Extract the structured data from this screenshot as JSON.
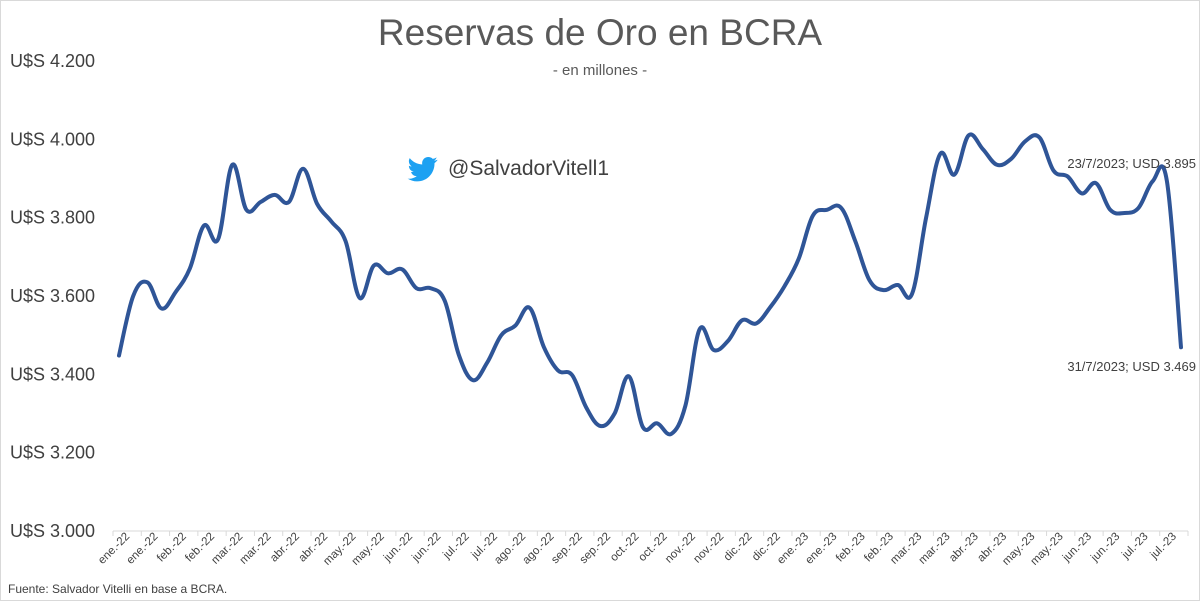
{
  "twitter_handle": "@SalvadorVitell1",
  "icons": {
    "twitter": "twitter-bird-icon"
  },
  "colors": {
    "line": "#2f5597",
    "twitter": "#1da1f2",
    "text": "#404040",
    "title": "#595959"
  },
  "source": "Fuente: Salvador Vitelli en base a BCRA.",
  "chart_data": {
    "type": "line",
    "title": "Reservas de Oro en BCRA",
    "subtitle": "- en millones -",
    "ylim": [
      3000,
      4200
    ],
    "yticks": [
      3000,
      3200,
      3400,
      3600,
      3800,
      4000,
      4200
    ],
    "ytick_labels": [
      "U$S 3.000",
      "U$S 3.200",
      "U$S 3.400",
      "U$S 3.600",
      "U$S 3.800",
      "U$S 4.000",
      "U$S 4.200"
    ],
    "xtick_labels": [
      "ene.-22",
      "ene.-22",
      "feb.-22",
      "feb.-22",
      "mar.-22",
      "mar.-22",
      "abr.-22",
      "abr.-22",
      "may.-22",
      "may.-22",
      "jun.-22",
      "jun.-22",
      "jul.-22",
      "jul.-22",
      "ago.-22",
      "ago.-22",
      "sep.-22",
      "sep.-22",
      "oct.-22",
      "oct.-22",
      "nov.-22",
      "nov.-22",
      "dic.-22",
      "dic.-22",
      "ene.-23",
      "ene.-23",
      "feb.-23",
      "feb.-23",
      "mar.-23",
      "mar.-23",
      "abr.-23",
      "abr.-23",
      "may.-23",
      "may.-23",
      "jun.-23",
      "jun.-23",
      "jul.-23",
      "jul.-23"
    ],
    "grid": false,
    "legend": "none",
    "series": [
      {
        "values": [
          3448,
          3600,
          3635,
          3568,
          3610,
          3670,
          3780,
          3745,
          3935,
          3820,
          3840,
          3858,
          3840,
          3925,
          3835,
          3790,
          3740,
          3595,
          3678,
          3658,
          3668,
          3620,
          3620,
          3588,
          3450,
          3385,
          3430,
          3500,
          3525,
          3570,
          3470,
          3410,
          3398,
          3315,
          3268,
          3300,
          3395,
          3265,
          3275,
          3248,
          3320,
          3515,
          3462,
          3485,
          3538,
          3530,
          3572,
          3625,
          3695,
          3805,
          3820,
          3825,
          3740,
          3640,
          3615,
          3628,
          3605,
          3800,
          3963,
          3910,
          4010,
          3975,
          3935,
          3950,
          3995,
          4005,
          3920,
          3905,
          3862,
          3888,
          3820,
          3812,
          3825,
          3893,
          3895,
          3469
        ]
      }
    ],
    "annotations": [
      {
        "text": "23/7/2023; USD 3.895",
        "value": 3895
      },
      {
        "text": "31/7/2023; USD 3.469",
        "value": 3469
      }
    ]
  }
}
